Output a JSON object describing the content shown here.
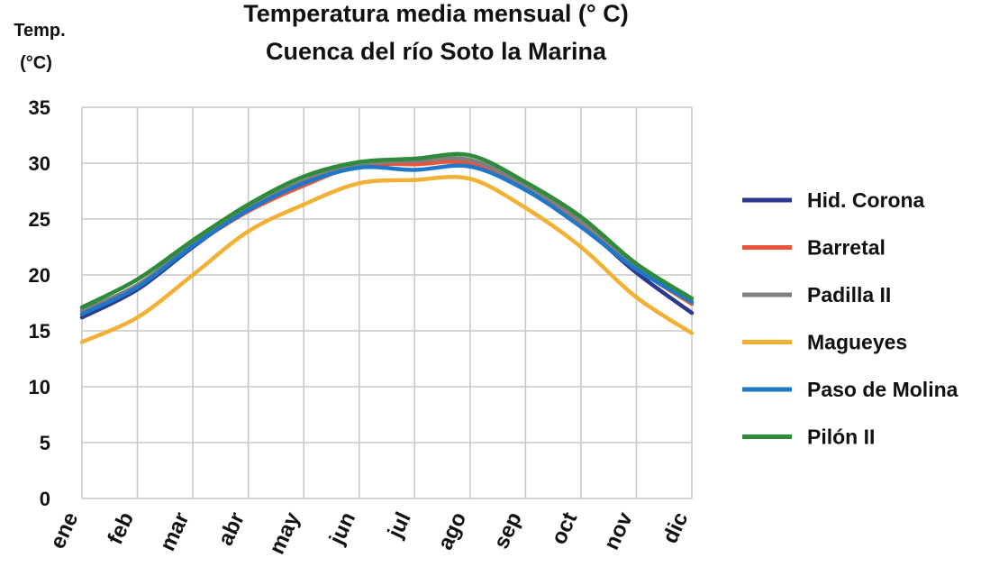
{
  "chart_data": {
    "type": "line",
    "title": "Temperatura media mensual (° C)",
    "subtitle": "Cuenca del río Soto la Marina",
    "ylabel_line1": "Temp.",
    "ylabel_line2": "(°C)",
    "xlabel": "",
    "ylim": [
      0,
      35
    ],
    "yticks": [
      0,
      5,
      10,
      15,
      20,
      25,
      30,
      35
    ],
    "grid": true,
    "legend_position": "right",
    "categories": [
      "ene",
      "feb",
      "mar",
      "abr",
      "may",
      "jun",
      "jul",
      "ago",
      "sep",
      "oct",
      "nov",
      "dic"
    ],
    "series": [
      {
        "name": "Hid. Corona",
        "color": "#2b3a8f",
        "values": [
          16.2,
          18.7,
          22.5,
          25.9,
          28.3,
          29.7,
          30.0,
          30.1,
          27.9,
          24.5,
          20.2,
          16.6
        ]
      },
      {
        "name": "Barretal",
        "color": "#e8553a",
        "values": [
          16.5,
          19.0,
          22.6,
          25.7,
          28.0,
          29.8,
          29.9,
          30.0,
          27.8,
          24.6,
          20.6,
          17.4
        ]
      },
      {
        "name": "Padilla II",
        "color": "#7f7f7f",
        "values": [
          16.8,
          19.1,
          22.8,
          26.0,
          28.4,
          29.9,
          30.2,
          30.3,
          28.0,
          24.8,
          20.7,
          17.5
        ]
      },
      {
        "name": "Magueyes",
        "color": "#f2b134",
        "values": [
          14.0,
          16.2,
          20.0,
          23.9,
          26.3,
          28.2,
          28.5,
          28.6,
          26.0,
          22.5,
          18.0,
          14.8
        ]
      },
      {
        "name": "Paso de Molina",
        "color": "#1f77c9",
        "values": [
          16.5,
          18.9,
          22.6,
          25.8,
          28.2,
          29.6,
          29.4,
          29.7,
          27.6,
          24.3,
          20.5,
          17.6
        ]
      },
      {
        "name": "Pilón II",
        "color": "#2e8b3a",
        "values": [
          17.1,
          19.6,
          23.1,
          26.3,
          28.8,
          30.1,
          30.4,
          30.7,
          28.3,
          25.2,
          21.0,
          17.9
        ]
      }
    ]
  }
}
